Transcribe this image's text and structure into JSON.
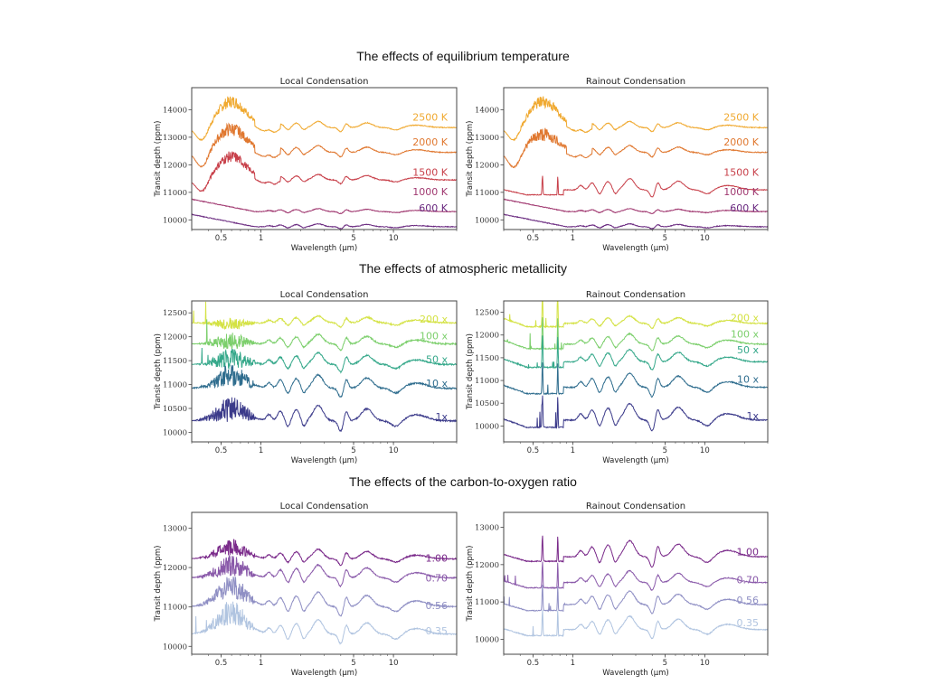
{
  "sections": [
    {
      "title": "The effects of equilibrium temperature"
    },
    {
      "title": "The effects of atmospheric metallicity"
    },
    {
      "title": "The effects of the carbon-to-oxygen ratio"
    }
  ],
  "chart_data": [
    {
      "type": "line",
      "section": 0,
      "title": "Local Condensation",
      "xlabel": "Wavelength (μm)",
      "ylabel": "Transit depth (ppm)",
      "xscale": "log",
      "xlim": [
        0.3,
        30
      ],
      "ylim": [
        9650,
        14800
      ],
      "xticks": [
        0.5,
        1,
        5,
        10
      ],
      "xtick_labels": [
        "0.5",
        "1",
        "5",
        "10"
      ],
      "yticks": [
        10000,
        11000,
        12000,
        13000,
        14000
      ],
      "ytick_labels": [
        "10000",
        "11000",
        "12000",
        "13000",
        "14000"
      ],
      "series": [
        {
          "name": "2500 K",
          "color": "#f0a930",
          "baseline": 13350,
          "peak": 14300,
          "amp": 500,
          "label_y": 13600,
          "condensation": "local"
        },
        {
          "name": "2000 K",
          "color": "#e07830",
          "baseline": 12450,
          "peak": 13300,
          "amp": 550,
          "label_y": 12700,
          "condensation": "local"
        },
        {
          "name": "1500 K",
          "color": "#c8404a",
          "baseline": 11450,
          "peak": 12300,
          "amp": 450,
          "label_y": 11600,
          "condensation": "local"
        },
        {
          "name": "1000 K",
          "color": "#a03870",
          "baseline": 10700,
          "peak": 10650,
          "amp": 200,
          "label_y": 10900,
          "condensation": "local-flat"
        },
        {
          "name": "600 K",
          "color": "#6a2a80",
          "baseline": 10150,
          "peak": 10100,
          "amp": 200,
          "label_y": 10300,
          "condensation": "local-flat"
        }
      ]
    },
    {
      "type": "line",
      "section": 0,
      "title": "Rainout Condensation",
      "xlabel": "Wavelength (μm)",
      "ylabel": "Transit depth (ppm)",
      "xscale": "log",
      "xlim": [
        0.3,
        30
      ],
      "ylim": [
        9650,
        14800
      ],
      "xticks": [
        0.5,
        1,
        5,
        10
      ],
      "xtick_labels": [
        "0.5",
        "1",
        "5",
        "10"
      ],
      "yticks": [
        10000,
        11000,
        12000,
        13000,
        14000
      ],
      "ytick_labels": [
        "10000",
        "11000",
        "12000",
        "13000",
        "14000"
      ],
      "series": [
        {
          "name": "2500 K",
          "color": "#f0a930",
          "baseline": 13350,
          "peak": 14300,
          "amp": 500,
          "label_y": 13600,
          "condensation": "local"
        },
        {
          "name": "2000 K",
          "color": "#e07830",
          "baseline": 12450,
          "peak": 13100,
          "amp": 550,
          "label_y": 12700,
          "condensation": "local"
        },
        {
          "name": "1500 K",
          "color": "#c8404a",
          "baseline": 11450,
          "peak": 11100,
          "amp": 450,
          "label_y": 11600,
          "condensation": "rainout"
        },
        {
          "name": "1000 K",
          "color": "#a03870",
          "baseline": 10700,
          "peak": 10650,
          "amp": 200,
          "label_y": 10900,
          "condensation": "local-flat"
        },
        {
          "name": "600 K",
          "color": "#6a2a80",
          "baseline": 10150,
          "peak": 10100,
          "amp": 200,
          "label_y": 10300,
          "condensation": "local-flat"
        }
      ]
    },
    {
      "type": "line",
      "section": 1,
      "title": "Local Condensation",
      "xlabel": "Wavelength (μm)",
      "ylabel": "Transit depth (ppm)",
      "xscale": "log",
      "xlim": [
        0.3,
        30
      ],
      "ylim": [
        9800,
        12750
      ],
      "xticks": [
        0.5,
        1,
        5,
        10
      ],
      "xtick_labels": [
        "0.5",
        "1",
        "5",
        "10"
      ],
      "yticks": [
        10000,
        10500,
        11000,
        11500,
        12000,
        12500
      ],
      "ytick_labels": [
        "10000",
        "10500",
        "11000",
        "11500",
        "12000",
        "12500"
      ],
      "series": [
        {
          "name": "200 x",
          "color": "#d4e244",
          "baseline": 12400,
          "peak": 12350,
          "amp": 180,
          "label_y": 12300,
          "condensation": "metal"
        },
        {
          "name": "100 x",
          "color": "#7ccf6c",
          "baseline": 12000,
          "peak": 12100,
          "amp": 250,
          "label_y": 11950,
          "condensation": "metal"
        },
        {
          "name": "50 x",
          "color": "#35a88a",
          "baseline": 11600,
          "peak": 11800,
          "amp": 300,
          "label_y": 11450,
          "condensation": "metal"
        },
        {
          "name": "10 x",
          "color": "#2f6d8e",
          "baseline": 11130,
          "peak": 11600,
          "amp": 350,
          "label_y": 10950,
          "condensation": "metal"
        },
        {
          "name": "1x",
          "color": "#3b3a8a",
          "baseline": 10480,
          "peak": 10900,
          "amp": 400,
          "label_y": 10250,
          "condensation": "metal"
        }
      ]
    },
    {
      "type": "line",
      "section": 1,
      "title": "Rainout Condensation",
      "xlabel": "Wavelength (μm)",
      "ylabel": "Transit depth (ppm)",
      "xscale": "log",
      "xlim": [
        0.3,
        30
      ],
      "ylim": [
        9650,
        12750
      ],
      "xticks": [
        0.5,
        1,
        5,
        10
      ],
      "xtick_labels": [
        "0.5",
        "1",
        "5",
        "10"
      ],
      "yticks": [
        10000,
        10500,
        11000,
        11500,
        12000,
        12500
      ],
      "ytick_labels": [
        "10000",
        "10500",
        "11000",
        "11500",
        "12000",
        "12500"
      ],
      "series": [
        {
          "name": "200 x",
          "color": "#d4e244",
          "baseline": 12400,
          "peak": 12100,
          "amp": 180,
          "label_y": 12300,
          "condensation": "rainout"
        },
        {
          "name": "100 x",
          "color": "#7ccf6c",
          "baseline": 12000,
          "peak": 11800,
          "amp": 250,
          "label_y": 11950,
          "condensation": "rainout"
        },
        {
          "name": "50 x",
          "color": "#35a88a",
          "baseline": 11650,
          "peak": 11500,
          "amp": 300,
          "label_y": 11600,
          "condensation": "rainout"
        },
        {
          "name": "10 x",
          "color": "#2f6d8e",
          "baseline": 11130,
          "peak": 11000,
          "amp": 350,
          "label_y": 10950,
          "condensation": "rainout"
        },
        {
          "name": "1x",
          "color": "#3b3a8a",
          "baseline": 10450,
          "peak": 10200,
          "amp": 400,
          "label_y": 10150,
          "condensation": "rainout"
        }
      ]
    },
    {
      "type": "line",
      "section": 2,
      "title": "Local Condensation",
      "xlabel": "Wavelength (μm)",
      "ylabel": "Transit depth (ppm)",
      "xscale": "log",
      "xlim": [
        0.3,
        30
      ],
      "ylim": [
        9800,
        13400
      ],
      "xticks": [
        0.5,
        1,
        5,
        10
      ],
      "xtick_labels": [
        "0.5",
        "1",
        "5",
        "10"
      ],
      "yticks": [
        10000,
        11000,
        12000,
        13000
      ],
      "ytick_labels": [
        "10000",
        "11000",
        "12000",
        "13000"
      ],
      "series": [
        {
          "name": "1.00",
          "color": "#7a2a8a",
          "baseline": 12400,
          "peak": 12900,
          "amp": 300,
          "label_y": 12150,
          "condensation": "co"
        },
        {
          "name": "0.70",
          "color": "#8a5aaa",
          "baseline": 11980,
          "peak": 12500,
          "amp": 400,
          "label_y": 11650,
          "condensation": "co"
        },
        {
          "name": "0.56",
          "color": "#8f8fc4",
          "baseline": 11280,
          "peak": 12100,
          "amp": 450,
          "label_y": 10950,
          "condensation": "co"
        },
        {
          "name": "0.35",
          "color": "#b0c4e0",
          "baseline": 10580,
          "peak": 11500,
          "amp": 450,
          "label_y": 10300,
          "condensation": "co"
        }
      ]
    },
    {
      "type": "line",
      "section": 2,
      "title": "Rainout Condensation",
      "xlabel": "Wavelength (μm)",
      "ylabel": "Transit depth (ppm)",
      "xscale": "log",
      "xlim": [
        0.3,
        30
      ],
      "ylim": [
        9600,
        13400
      ],
      "xticks": [
        0.5,
        1,
        5,
        10
      ],
      "xtick_labels": [
        "0.5",
        "1",
        "5",
        "10"
      ],
      "yticks": [
        10000,
        11000,
        12000,
        13000
      ],
      "ytick_labels": [
        "10000",
        "11000",
        "12000",
        "13000"
      ],
      "series": [
        {
          "name": "1.00",
          "color": "#7a2a8a",
          "baseline": 12450,
          "peak": 12300,
          "amp": 300,
          "label_y": 12250,
          "condensation": "rainout-co"
        },
        {
          "name": "0.70",
          "color": "#8a5aaa",
          "baseline": 11800,
          "peak": 11600,
          "amp": 350,
          "label_y": 11500,
          "condensation": "rainout"
        },
        {
          "name": "0.56",
          "color": "#8f8fc4",
          "baseline": 11250,
          "peak": 11050,
          "amp": 400,
          "label_y": 10950,
          "condensation": "rainout"
        },
        {
          "name": "0.35",
          "color": "#b0c4e0",
          "baseline": 10580,
          "peak": 10300,
          "amp": 400,
          "label_y": 10350,
          "condensation": "rainout"
        }
      ]
    }
  ]
}
